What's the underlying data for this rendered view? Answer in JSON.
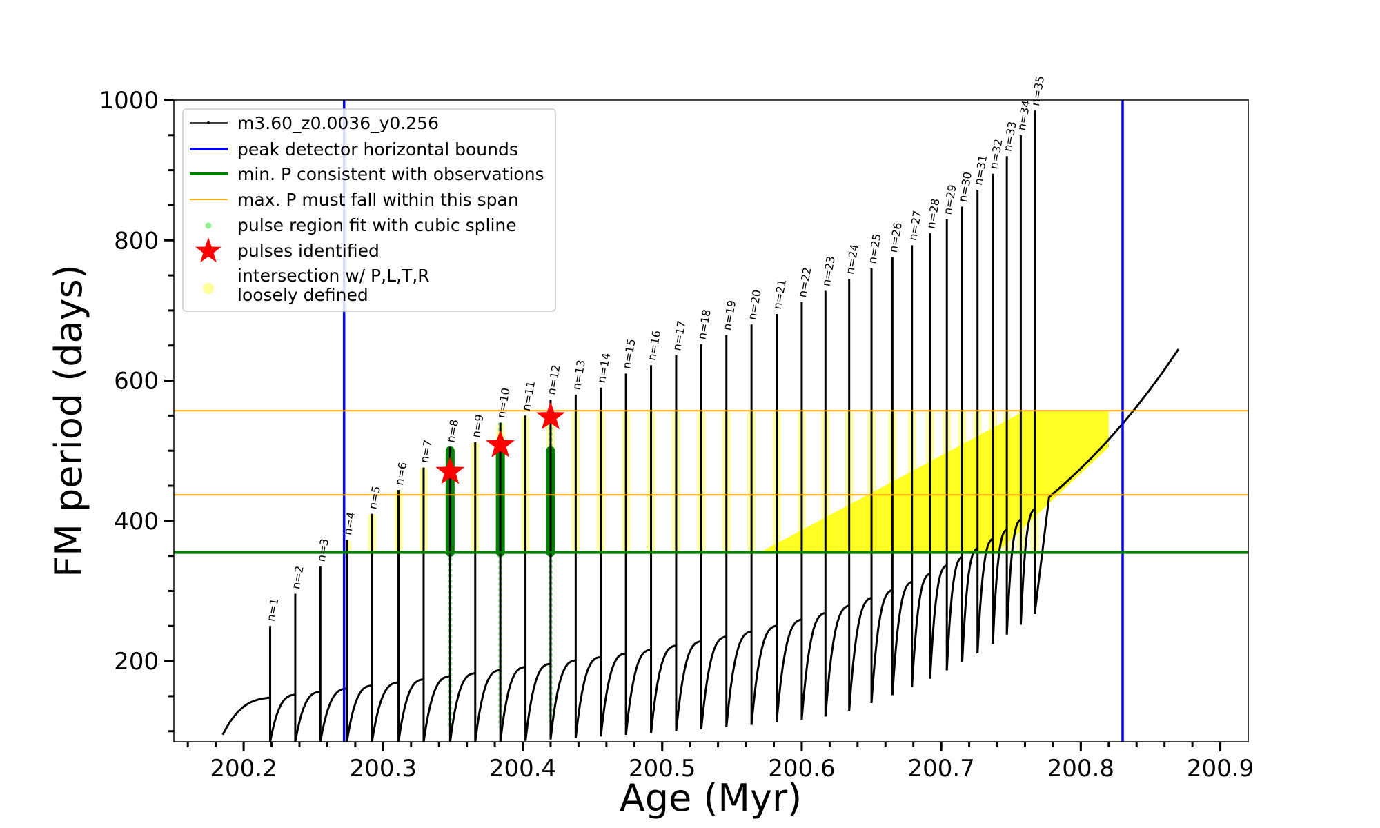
{
  "chart_data": {
    "type": "scatter",
    "xlabel": "Age (Myr)",
    "ylabel": "FM period (days)",
    "xlim": [
      200.15,
      200.92
    ],
    "ylim": [
      85,
      1000
    ],
    "x_ticks": [
      200.2,
      200.3,
      200.4,
      200.5,
      200.6,
      200.7,
      200.8,
      200.9
    ],
    "x_tick_labels": [
      "200.2",
      "200.3",
      "200.4",
      "200.5",
      "200.6",
      "200.7",
      "200.8",
      "200.9"
    ],
    "y_ticks": [
      200,
      400,
      600,
      800,
      1000
    ],
    "y_tick_labels": [
      "200",
      "400",
      "600",
      "800",
      "1000"
    ],
    "grid": false,
    "legend_position": "top-left",
    "colors": {
      "track": "#000000",
      "peak_bounds": "#0000ff",
      "min_p": "#008000",
      "max_p": "#ffa500",
      "spline": "#90ee90",
      "pulse": "#ff0000",
      "intersection": "#ffff00"
    },
    "series": [
      {
        "name": "m3.60_z0.0036_y0.256",
        "kind": "track"
      },
      {
        "name": "peak detector horizontal bounds",
        "kind": "vline",
        "x": [
          200.272,
          200.83
        ]
      },
      {
        "name": "min. P consistent with observations",
        "kind": "hline",
        "y": [
          355
        ]
      },
      {
        "name": "max. P must fall within this span",
        "kind": "hline",
        "y": [
          437,
          557
        ]
      },
      {
        "name": "pulse region fit with cubic spline",
        "kind": "spline"
      },
      {
        "name": "pulses identified",
        "kind": "star",
        "points": [
          [
            200.348,
            470
          ],
          [
            200.384,
            508
          ],
          [
            200.42,
            548
          ]
        ]
      },
      {
        "name": "intersection w/ P,L,T,R\nloosely defined",
        "kind": "intersection"
      }
    ],
    "pulses": [
      {
        "n": 1,
        "label": "n=1",
        "age": 200.219,
        "peak": 250
      },
      {
        "n": 2,
        "label": "n=2",
        "age": 200.237,
        "peak": 296
      },
      {
        "n": 3,
        "label": "n=3",
        "age": 200.255,
        "peak": 335
      },
      {
        "n": 4,
        "label": "n=4",
        "age": 200.274,
        "peak": 373
      },
      {
        "n": 5,
        "label": "n=5",
        "age": 200.292,
        "peak": 410
      },
      {
        "n": 6,
        "label": "n=6",
        "age": 200.311,
        "peak": 444
      },
      {
        "n": 7,
        "label": "n=7",
        "age": 200.329,
        "peak": 476
      },
      {
        "n": 8,
        "label": "n=8",
        "age": 200.348,
        "peak": 505
      },
      {
        "n": 9,
        "label": "n=9",
        "age": 200.366,
        "peak": 512
      },
      {
        "n": 10,
        "label": "n=10",
        "age": 200.384,
        "peak": 540
      },
      {
        "n": 11,
        "label": "n=11",
        "age": 200.402,
        "peak": 550
      },
      {
        "n": 12,
        "label": "n=12",
        "age": 200.42,
        "peak": 573
      },
      {
        "n": 13,
        "label": "n=13",
        "age": 200.438,
        "peak": 580
      },
      {
        "n": 14,
        "label": "n=14",
        "age": 200.456,
        "peak": 590
      },
      {
        "n": 15,
        "label": "n=15",
        "age": 200.474,
        "peak": 610
      },
      {
        "n": 16,
        "label": "n=16",
        "age": 200.492,
        "peak": 622
      },
      {
        "n": 17,
        "label": "n=17",
        "age": 200.51,
        "peak": 636
      },
      {
        "n": 18,
        "label": "n=18",
        "age": 200.528,
        "peak": 652
      },
      {
        "n": 19,
        "label": "n=19",
        "age": 200.546,
        "peak": 665
      },
      {
        "n": 20,
        "label": "n=20",
        "age": 200.564,
        "peak": 680
      },
      {
        "n": 21,
        "label": "n=21",
        "age": 200.582,
        "peak": 695
      },
      {
        "n": 22,
        "label": "n=22",
        "age": 200.6,
        "peak": 712
      },
      {
        "n": 23,
        "label": "n=23",
        "age": 200.617,
        "peak": 728
      },
      {
        "n": 24,
        "label": "n=24",
        "age": 200.634,
        "peak": 745
      },
      {
        "n": 25,
        "label": "n=25",
        "age": 200.65,
        "peak": 760
      },
      {
        "n": 26,
        "label": "n=26",
        "age": 200.665,
        "peak": 776
      },
      {
        "n": 27,
        "label": "n=27",
        "age": 200.679,
        "peak": 793
      },
      {
        "n": 28,
        "label": "n=28",
        "age": 200.692,
        "peak": 810
      },
      {
        "n": 29,
        "label": "n=29",
        "age": 200.704,
        "peak": 830
      },
      {
        "n": 30,
        "label": "n=30",
        "age": 200.715,
        "peak": 848
      },
      {
        "n": 31,
        "label": "n=31",
        "age": 200.726,
        "peak": 872
      },
      {
        "n": 32,
        "label": "n=32",
        "age": 200.737,
        "peak": 895
      },
      {
        "n": 33,
        "label": "n=33",
        "age": 200.747,
        "peak": 920
      },
      {
        "n": 34,
        "label": "n=34",
        "age": 200.757,
        "peak": 950
      },
      {
        "n": 35,
        "label": "n=35",
        "age": 200.767,
        "peak": 985
      }
    ]
  }
}
